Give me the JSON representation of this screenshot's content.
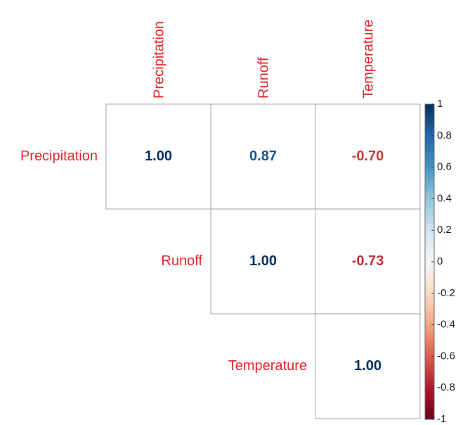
{
  "chart_data": {
    "type": "heatmap",
    "variables": [
      "Precipitation",
      "Runoff",
      "Temperature"
    ],
    "layout": "upper-triangle",
    "cells": [
      {
        "row": "Precipitation",
        "col": "Precipitation",
        "value": 1.0,
        "label": "1.00"
      },
      {
        "row": "Precipitation",
        "col": "Runoff",
        "value": 0.87,
        "label": "0.87"
      },
      {
        "row": "Precipitation",
        "col": "Temperature",
        "value": -0.7,
        "label": "-0.70"
      },
      {
        "row": "Runoff",
        "col": "Runoff",
        "value": 1.0,
        "label": "1.00"
      },
      {
        "row": "Runoff",
        "col": "Temperature",
        "value": -0.73,
        "label": "-0.73"
      },
      {
        "row": "Temperature",
        "col": "Temperature",
        "value": 1.0,
        "label": "1.00"
      }
    ],
    "colorbar": {
      "range": [
        -1,
        1
      ],
      "ticks": [
        "1",
        "0.8",
        "0.6",
        "0.4",
        "0.2",
        "0",
        "-0.2",
        "-0.4",
        "-0.6",
        "-0.8",
        "-1"
      ],
      "placement": "right"
    },
    "label_color": "#e8242a",
    "color_scale": [
      "#67001f",
      "#b2182b",
      "#d6604d",
      "#f4a582",
      "#fddbc7",
      "#f7f7f7",
      "#d1e5f0",
      "#92c5de",
      "#4393c3",
      "#2166ac",
      "#053061"
    ]
  }
}
